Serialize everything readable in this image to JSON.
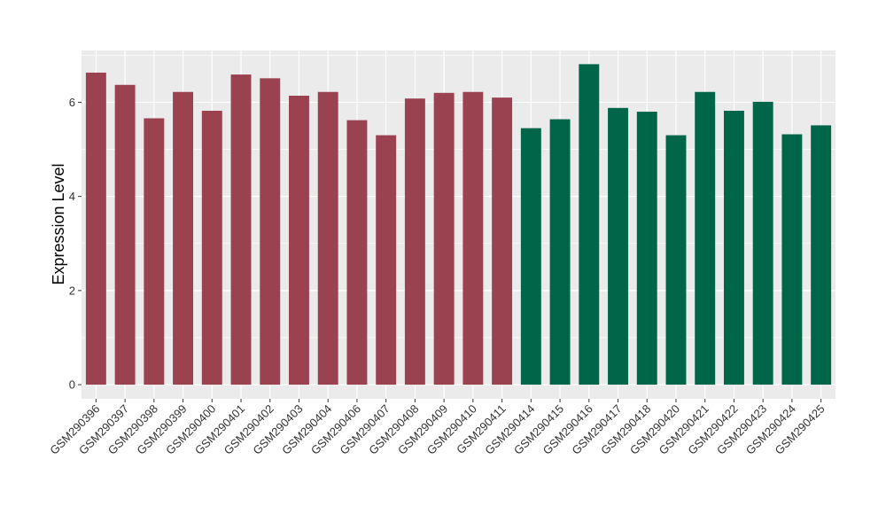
{
  "chart_data": {
    "type": "bar",
    "ylabel": "Expression Level",
    "ylim": [
      -0.3,
      7.1
    ],
    "yticks": [
      0,
      2,
      4,
      6
    ],
    "grid": true,
    "colors": {
      "group1": "#9b4250",
      "group2": "#00664a",
      "panel": "#ebebeb",
      "grid": "#ffffff"
    },
    "categories": [
      "GSM290396",
      "GSM290397",
      "GSM290398",
      "GSM290399",
      "GSM290400",
      "GSM290401",
      "GSM290402",
      "GSM290403",
      "GSM290404",
      "GSM290406",
      "GSM290407",
      "GSM290408",
      "GSM290409",
      "GSM290410",
      "GSM290411",
      "GSM290414",
      "GSM290415",
      "GSM290416",
      "GSM290417",
      "GSM290418",
      "GSM290420",
      "GSM290421",
      "GSM290422",
      "GSM290423",
      "GSM290424",
      "GSM290425"
    ],
    "values": [
      6.63,
      6.37,
      5.66,
      6.22,
      5.82,
      6.59,
      6.51,
      6.14,
      6.22,
      5.62,
      5.3,
      6.08,
      6.2,
      6.22,
      6.1,
      5.45,
      5.64,
      6.81,
      5.88,
      5.8,
      5.3,
      6.22,
      5.82,
      6.01,
      5.32,
      5.51
    ],
    "groups": [
      1,
      1,
      1,
      1,
      1,
      1,
      1,
      1,
      1,
      1,
      1,
      1,
      1,
      1,
      1,
      2,
      2,
      2,
      2,
      2,
      2,
      2,
      2,
      2,
      2,
      2
    ]
  }
}
